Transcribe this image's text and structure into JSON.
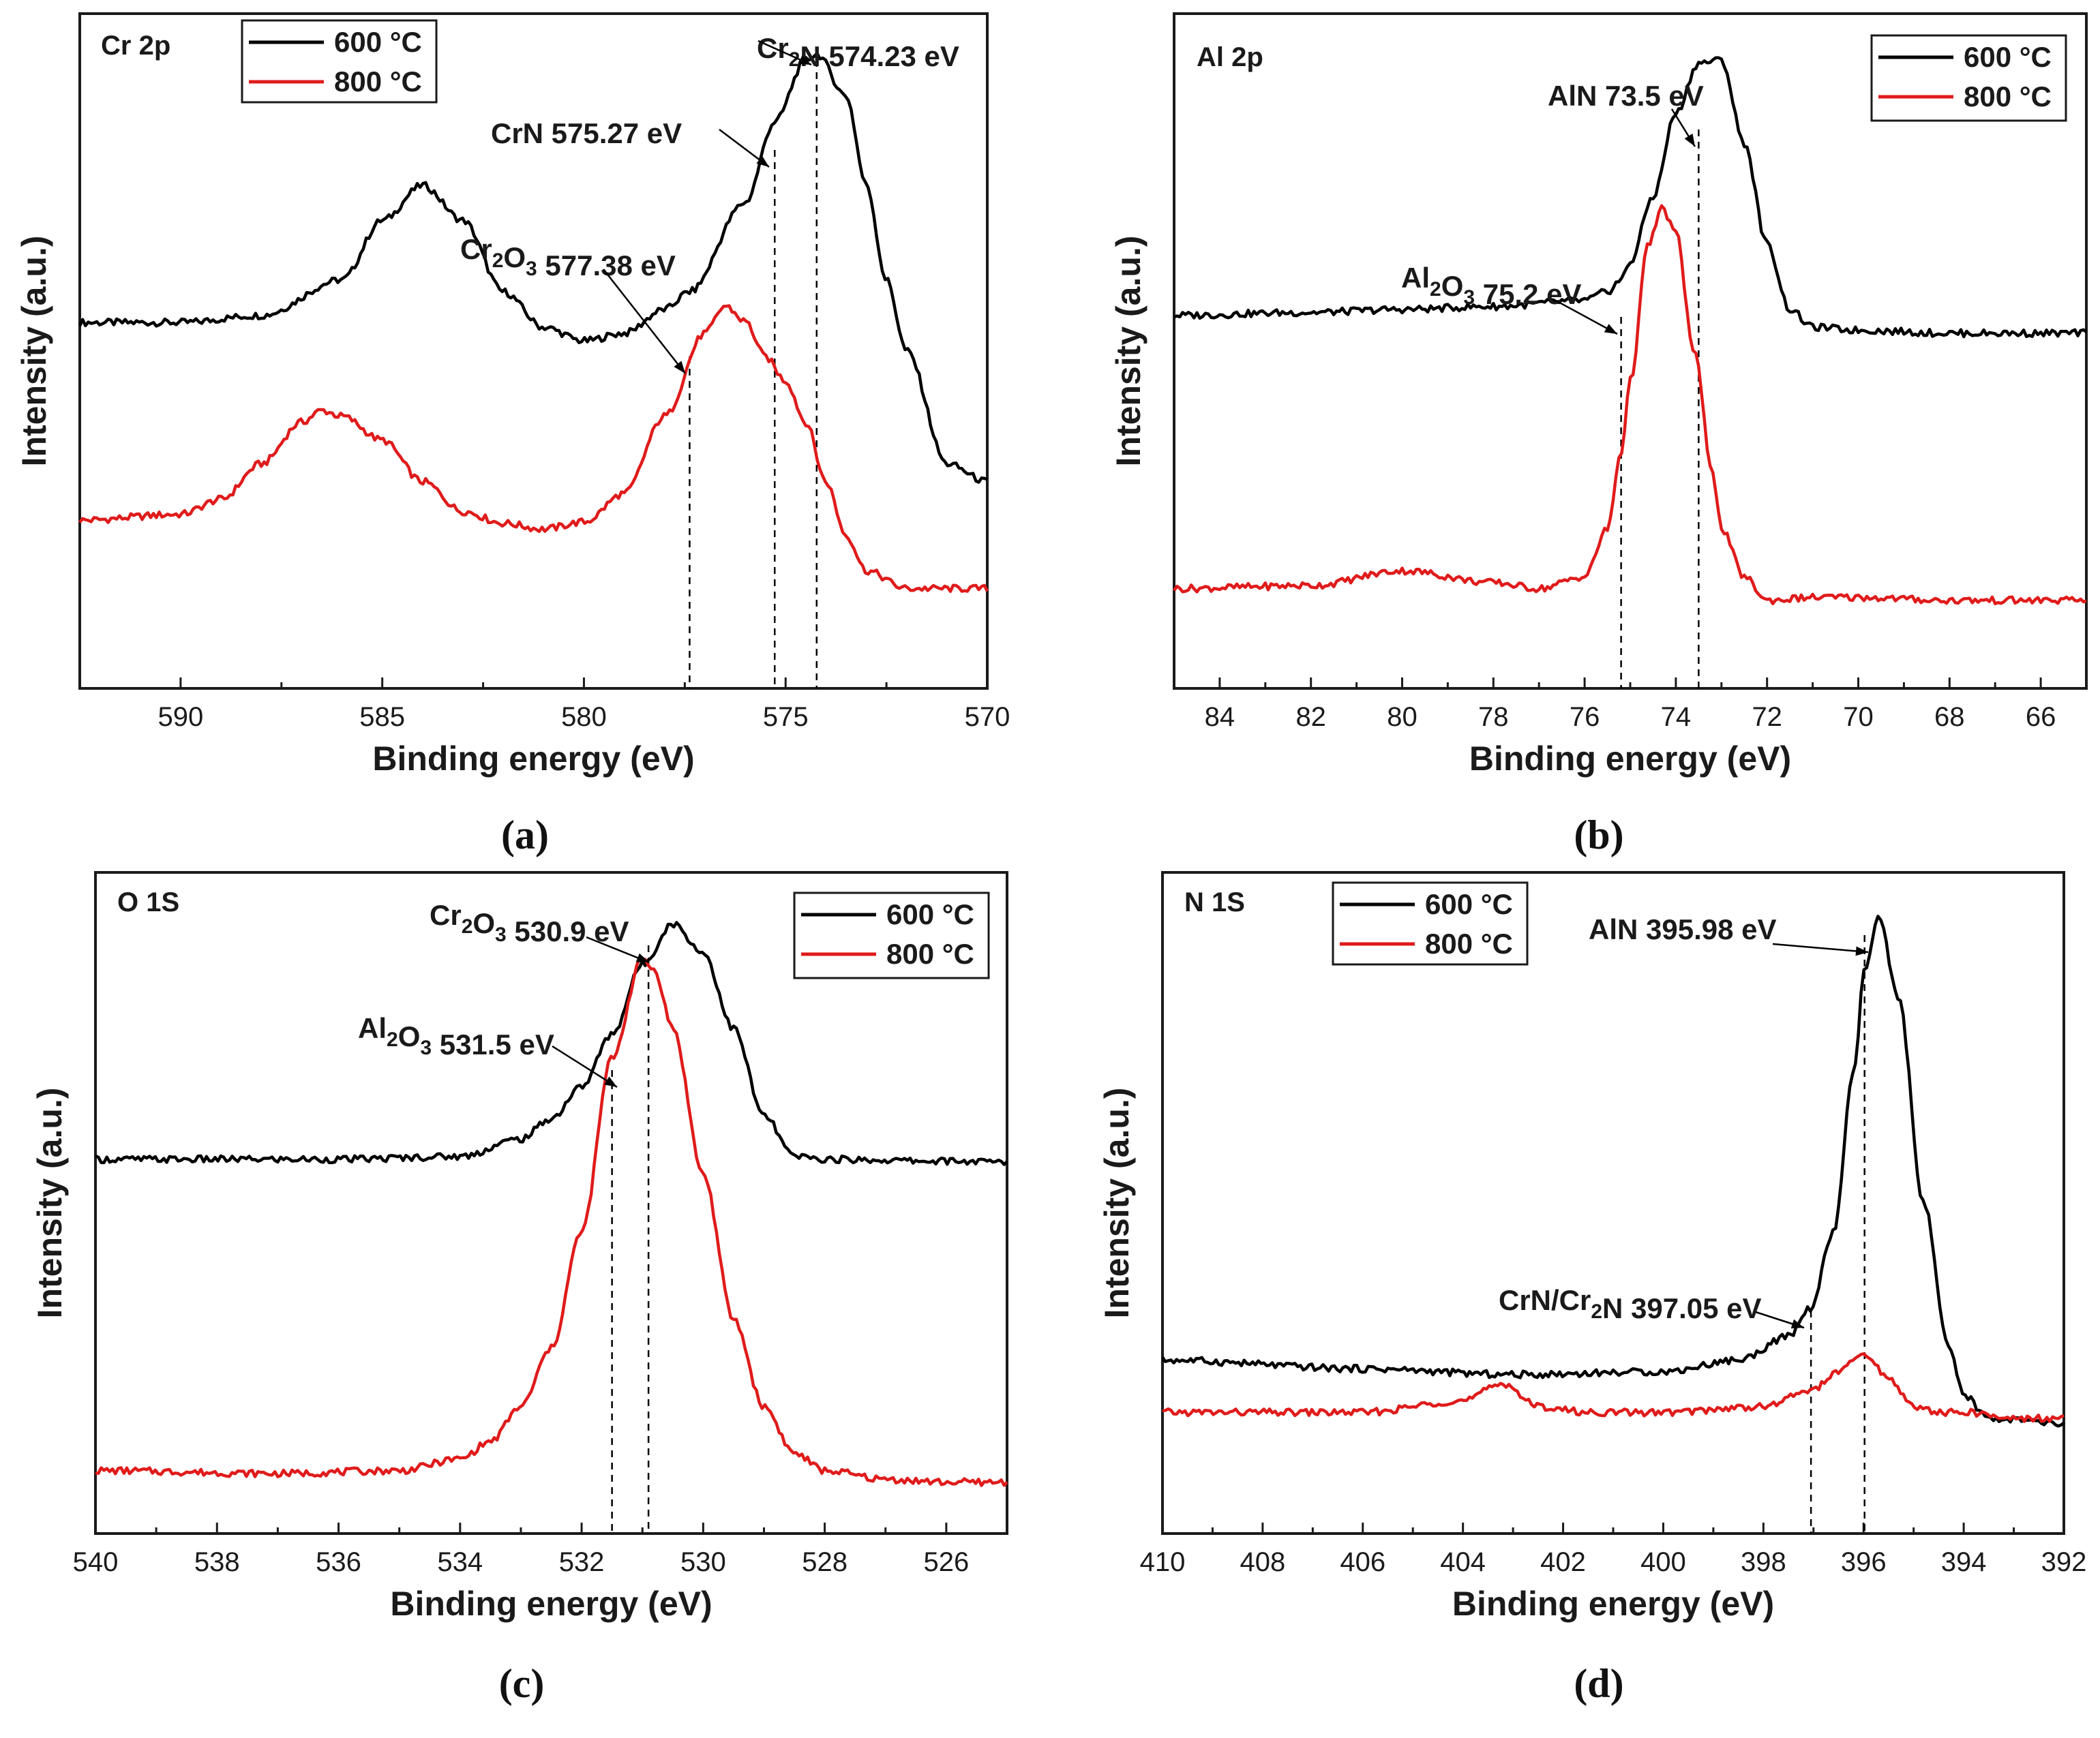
{
  "figure": {
    "captions": [
      "(a)",
      "(b)",
      "(c)",
      "(d)"
    ]
  },
  "chart_data": [
    {
      "type": "line",
      "panel": "a",
      "title": "Cr 2p",
      "xlabel": "Binding energy (eV)",
      "ylabel": "Intensity (a.u.)",
      "xlim": [
        592.5,
        570
      ],
      "ylim": [
        0,
        1
      ],
      "xticks": [
        590,
        585,
        580,
        575,
        570
      ],
      "tick_labels": [
        "590",
        "585",
        "580",
        "575",
        "570"
      ],
      "colors": {
        "s600": "#000000",
        "s800": "#e01b1b",
        "axis": "#1a1a1a"
      },
      "legend": {
        "position": "top-left",
        "entries": [
          "600 °C",
          "800 °C"
        ]
      },
      "series": [
        {
          "name": "600 °C",
          "color": "#000000",
          "x": [
            592.5,
            590,
            588,
            586,
            585,
            584,
            583,
            582,
            581,
            580,
            579,
            578,
            577.38,
            576,
            575.27,
            574.5,
            574.23,
            573.5,
            573,
            572.5,
            572,
            571,
            570
          ],
          "y": [
            0.548,
            0.548,
            0.56,
            0.62,
            0.72,
            0.779,
            0.72,
            0.6,
            0.54,
            0.517,
            0.53,
            0.57,
            0.6,
            0.75,
            0.886,
            0.99,
            1.0,
            0.93,
            0.78,
            0.62,
            0.5,
            0.31,
            0.28
          ]
        },
        {
          "name": "800 °C",
          "color": "#e01b1b",
          "x": [
            592.5,
            590,
            589,
            588,
            587,
            586.5,
            586,
            585,
            584,
            583,
            582,
            581,
            580,
            579,
            578,
            577,
            576.5,
            576,
            575.5,
            575,
            574.5,
            574,
            573.5,
            573,
            572,
            571,
            570
          ],
          "y": [
            0.215,
            0.225,
            0.25,
            0.31,
            0.38,
            0.4,
            0.39,
            0.35,
            0.28,
            0.23,
            0.21,
            0.2,
            0.212,
            0.26,
            0.39,
            0.53,
            0.576,
            0.55,
            0.49,
            0.45,
            0.38,
            0.28,
            0.19,
            0.13,
            0.1,
            0.1,
            0.1
          ]
        }
      ],
      "refs": [
        {
          "x": 574.23,
          "label": "Cr₂N 574.23 eV"
        },
        {
          "x": 575.27,
          "label": "CrN 575.27 eV"
        },
        {
          "x": 577.38,
          "label": "Cr₂O₃ 577.38 eV"
        }
      ]
    },
    {
      "type": "line",
      "panel": "b",
      "title": "Al 2p",
      "xlabel": "Binding energy (eV)",
      "ylabel": "Intensity (a.u.)",
      "xlim": [
        85,
        65
      ],
      "ylim": [
        0,
        1
      ],
      "xticks": [
        84,
        82,
        80,
        78,
        76,
        74,
        72,
        70,
        68,
        66
      ],
      "tick_labels": [
        "84",
        "82",
        "80",
        "78",
        "76",
        "74",
        "72",
        "70",
        "68",
        "66"
      ],
      "colors": {
        "s600": "#000000",
        "s800": "#e01b1b",
        "axis": "#1a1a1a"
      },
      "legend": {
        "position": "top-right",
        "entries": [
          "600 °C",
          "800 °C"
        ]
      },
      "series": [
        {
          "name": "600 °C",
          "color": "#000000",
          "x": [
            85,
            82,
            80,
            78,
            76,
            75.5,
            75.2,
            75,
            74.5,
            74,
            73.5,
            73,
            72.5,
            72,
            71.5,
            71,
            70,
            68,
            66,
            65
          ],
          "y": [
            0.56,
            0.565,
            0.57,
            0.575,
            0.585,
            0.6,
            0.62,
            0.65,
            0.76,
            0.9,
            0.985,
            0.99,
            0.85,
            0.68,
            0.57,
            0.54,
            0.535,
            0.53,
            0.53,
            0.53
          ]
        },
        {
          "name": "800 °C",
          "color": "#e01b1b",
          "x": [
            85,
            82,
            80,
            78,
            77,
            76,
            75.5,
            75.2,
            75,
            74.6,
            74.3,
            74,
            73.6,
            73.2,
            73,
            72.5,
            72,
            71,
            70,
            68,
            66,
            65
          ],
          "y": [
            0.1,
            0.105,
            0.13,
            0.11,
            0.1,
            0.12,
            0.2,
            0.33,
            0.45,
            0.68,
            0.74,
            0.7,
            0.5,
            0.3,
            0.2,
            0.12,
            0.08,
            0.085,
            0.085,
            0.08,
            0.08,
            0.08
          ]
        }
      ],
      "refs": [
        {
          "x": 73.5,
          "label": "AlN 73.5 eV"
        },
        {
          "x": 75.2,
          "label": "Al₂O₃ 75.2 eV"
        }
      ]
    },
    {
      "type": "line",
      "panel": "c",
      "title": "O 1S",
      "xlabel": "Binding energy (eV)",
      "ylabel": "Intensity (a.u.)",
      "xlim": [
        540,
        525
      ],
      "ylim": [
        0,
        1
      ],
      "xticks": [
        540,
        538,
        536,
        534,
        532,
        530,
        528,
        526
      ],
      "tick_labels": [
        "540",
        "538",
        "536",
        "534",
        "532",
        "530",
        "528",
        "526"
      ],
      "colors": {
        "s600": "#000000",
        "s800": "#e01b1b",
        "axis": "#1a1a1a"
      },
      "legend": {
        "position": "top-right",
        "entries": [
          "600 °C",
          "800 °C"
        ]
      },
      "series": [
        {
          "name": "600 °C",
          "color": "#000000",
          "x": [
            540,
            536,
            534,
            533,
            532.5,
            532,
            531.5,
            531,
            530.5,
            530,
            529.5,
            529,
            528.5,
            528,
            526,
            525
          ],
          "y": [
            0.575,
            0.575,
            0.58,
            0.61,
            0.645,
            0.7,
            0.79,
            0.91,
            0.98,
            0.93,
            0.8,
            0.65,
            0.58,
            0.575,
            0.572,
            0.57
          ]
        },
        {
          "name": "800 °C",
          "color": "#e01b1b",
          "x": [
            540,
            537,
            535,
            534,
            533.5,
            533,
            532.5,
            532,
            531.5,
            531,
            530.8,
            530.5,
            530,
            529.5,
            529,
            528.5,
            528,
            527,
            526,
            525
          ],
          "y": [
            0.04,
            0.035,
            0.04,
            0.06,
            0.09,
            0.15,
            0.25,
            0.45,
            0.75,
            0.92,
            0.9,
            0.8,
            0.55,
            0.3,
            0.15,
            0.07,
            0.04,
            0.025,
            0.02,
            0.02
          ]
        }
      ],
      "refs": [
        {
          "x": 530.9,
          "label": "Cr₂O₃ 530.9 eV"
        },
        {
          "x": 531.5,
          "label": "Al₂O₃ 531.5 eV"
        }
      ]
    },
    {
      "type": "line",
      "panel": "d",
      "title": "N 1S",
      "xlabel": "Binding energy (eV)",
      "ylabel": "Intensity (a.u.)",
      "xlim": [
        410,
        392
      ],
      "ylim": [
        0,
        1
      ],
      "xticks": [
        410,
        408,
        406,
        404,
        402,
        400,
        398,
        396,
        394,
        392
      ],
      "tick_labels": [
        "410",
        "408",
        "406",
        "404",
        "402",
        "400",
        "398",
        "396",
        "394",
        "392"
      ],
      "colors": {
        "s600": "#000000",
        "s800": "#e01b1b",
        "axis": "#1a1a1a"
      },
      "legend": {
        "position": "top-left",
        "entries": [
          "600 °C",
          "800 °C"
        ]
      },
      "series": [
        {
          "name": "600 °C",
          "color": "#000000",
          "x": [
            410,
            406,
            403,
            400,
            398.5,
            397.5,
            397.05,
            396.6,
            396.2,
            395.98,
            395.7,
            395.3,
            394.8,
            394.3,
            394,
            393.5,
            392
          ],
          "y": [
            0.23,
            0.215,
            0.205,
            0.21,
            0.23,
            0.27,
            0.32,
            0.45,
            0.72,
            0.9,
            0.99,
            0.85,
            0.5,
            0.25,
            0.17,
            0.13,
            0.12
          ]
        },
        {
          "name": "800 °C",
          "color": "#e01b1b",
          "x": [
            410,
            406,
            404,
            403.2,
            402.5,
            401.5,
            400,
            398,
            397,
            396.5,
            396,
            395.5,
            395,
            394.5,
            394,
            393,
            392
          ],
          "y": [
            0.14,
            0.14,
            0.16,
            0.19,
            0.15,
            0.14,
            0.14,
            0.15,
            0.18,
            0.21,
            0.24,
            0.2,
            0.15,
            0.14,
            0.14,
            0.13,
            0.13
          ]
        }
      ],
      "refs": [
        {
          "x": 395.98,
          "label": "AlN 395.98 eV"
        },
        {
          "x": 397.05,
          "label": "CrN/Cr₂N 397.05 eV"
        }
      ]
    }
  ]
}
